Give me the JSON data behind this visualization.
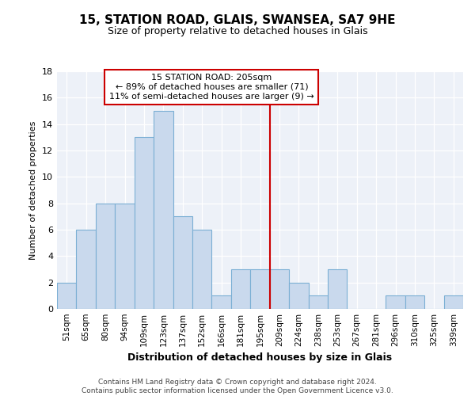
{
  "title1": "15, STATION ROAD, GLAIS, SWANSEA, SA7 9HE",
  "title2": "Size of property relative to detached houses in Glais",
  "xlabel": "Distribution of detached houses by size in Glais",
  "ylabel": "Number of detached properties",
  "categories": [
    "51sqm",
    "65sqm",
    "80sqm",
    "94sqm",
    "109sqm",
    "123sqm",
    "137sqm",
    "152sqm",
    "166sqm",
    "181sqm",
    "195sqm",
    "209sqm",
    "224sqm",
    "238sqm",
    "253sqm",
    "267sqm",
    "281sqm",
    "296sqm",
    "310sqm",
    "325sqm",
    "339sqm"
  ],
  "values": [
    2,
    6,
    8,
    8,
    13,
    15,
    7,
    6,
    1,
    3,
    3,
    3,
    2,
    1,
    3,
    0,
    0,
    1,
    1,
    0,
    1
  ],
  "bar_color": "#c9d9ed",
  "bar_edge_color": "#7bafd4",
  "vline_color": "#cc0000",
  "annotation_text": "15 STATION ROAD: 205sqm\n← 89% of detached houses are smaller (71)\n11% of semi-detached houses are larger (9) →",
  "annotation_box_color": "#cc0000",
  "ylim": [
    0,
    18
  ],
  "yticks": [
    0,
    2,
    4,
    6,
    8,
    10,
    12,
    14,
    16,
    18
  ],
  "footer": "Contains HM Land Registry data © Crown copyright and database right 2024.\nContains public sector information licensed under the Open Government Licence v3.0.",
  "bg_color": "#edf1f8",
  "title1_fontsize": 11,
  "title2_fontsize": 9,
  "xlabel_fontsize": 9,
  "ylabel_fontsize": 8
}
